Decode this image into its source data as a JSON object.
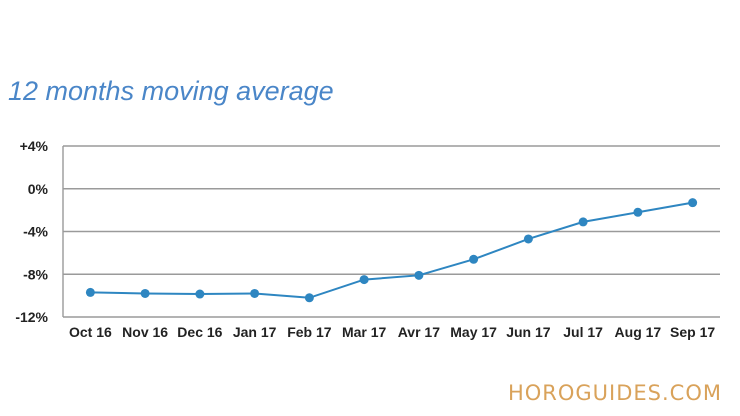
{
  "chart_data": {
    "type": "line",
    "title": "12 months moving average",
    "xlabel": "",
    "ylabel": "",
    "categories": [
      "Oct 16",
      "Nov 16",
      "Dec 16",
      "Jan 17",
      "Feb 17",
      "Mar 17",
      "Avr 17",
      "May 17",
      "Jun 17",
      "Jul 17",
      "Aug 17",
      "Sep 17"
    ],
    "series": [
      {
        "values": [
          -9.7,
          -9.8,
          -9.85,
          -9.8,
          -10.2,
          -8.5,
          -8.1,
          -6.6,
          -4.7,
          -3.1,
          -2.2,
          -1.3
        ]
      }
    ],
    "ylim": [
      -12,
      4
    ],
    "yticks": [
      4,
      0,
      -4,
      -8,
      -12
    ],
    "ytick_labels": [
      "+4%",
      "0%",
      "-4%",
      "-8%",
      "-12%"
    ],
    "grid": true,
    "legend": "none",
    "line_color": "#2e86c1"
  },
  "watermark": "HOROGUIDES.COM"
}
